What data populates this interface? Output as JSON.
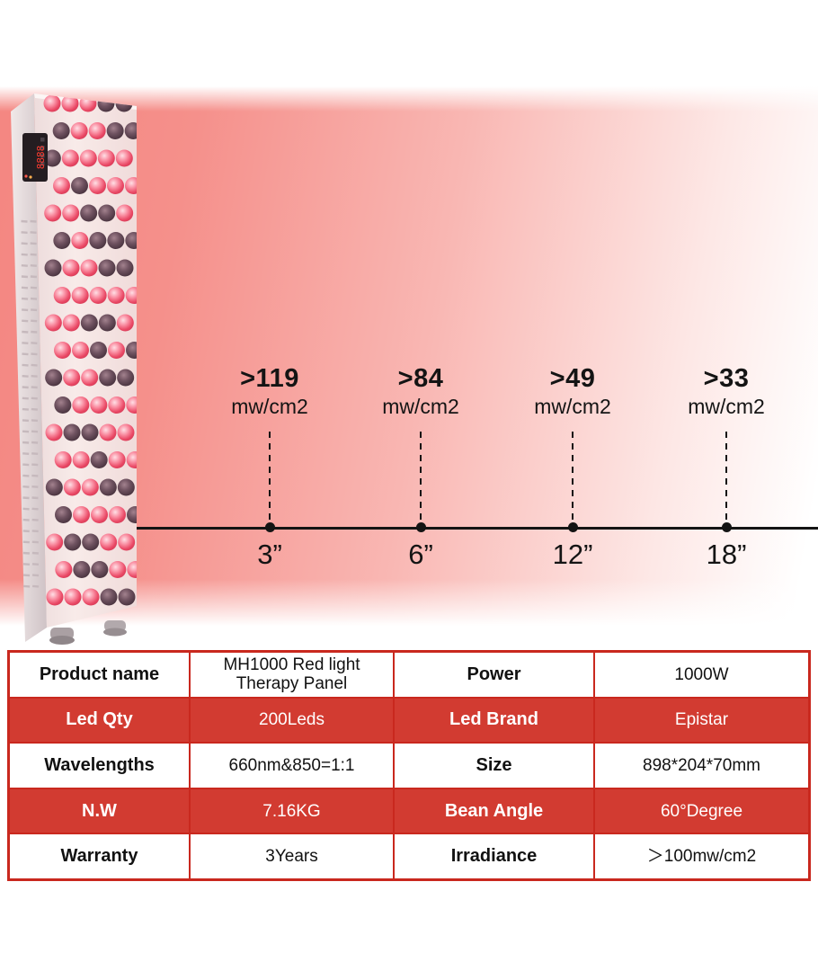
{
  "colors": {
    "ink": "#141414",
    "glow_red": "#f48782",
    "table_red": "#d23b31",
    "table_border": "#c9281e",
    "led_pink": "#ee5470",
    "led_dark": "#3a2830",
    "display_red": "#ff3b30"
  },
  "device": {
    "display_digits": "8888"
  },
  "measurements": [
    {
      "value": ">119",
      "unit": "mw/cm2",
      "distance": "3”"
    },
    {
      "value": ">84",
      "unit": "mw/cm2",
      "distance": "6”"
    },
    {
      "value": ">49",
      "unit": "mw/cm2",
      "distance": "12”"
    },
    {
      "value": ">33",
      "unit": "mw/cm2",
      "distance": "18”"
    }
  ],
  "chart_data": {
    "type": "scatter",
    "x": [
      "3”",
      "6”",
      "12”",
      "18”"
    ],
    "x_inches": [
      3,
      6,
      12,
      18
    ],
    "series": [
      {
        "name": "irradiance min (mw/cm2)",
        "values": [
          119,
          84,
          49,
          33
        ]
      }
    ],
    "value_prefix": ">",
    "unit": "mw/cm2",
    "legend": "none",
    "grid": false
  },
  "spec_table": {
    "rows": [
      {
        "cells": [
          "Product name",
          "MH1000 Red light Therapy Panel",
          "Power",
          "1000W"
        ]
      },
      {
        "cells": [
          "Led Qty",
          "200Leds",
          "Led Brand",
          "Epistar"
        ]
      },
      {
        "cells": [
          "Wavelengths",
          "660nm&850=1:1",
          "Size",
          "898*204*70mm"
        ]
      },
      {
        "cells": [
          "N.W",
          "7.16KG",
          "Bean Angle",
          "60°Degree"
        ]
      },
      {
        "cells": [
          "Warranty",
          "3Years",
          "Irradiance",
          "＞100mw/cm2"
        ]
      }
    ]
  }
}
